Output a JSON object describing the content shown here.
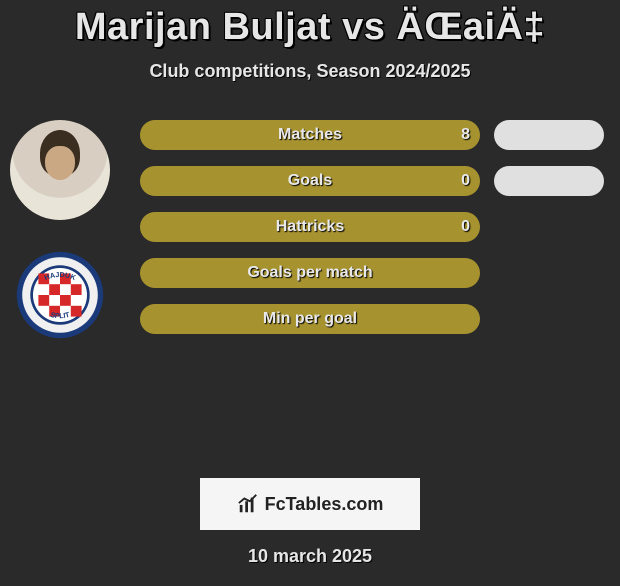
{
  "title": "Marijan Buljat vs ÄŒaiÄ‡",
  "subtitle": "Club competitions, Season 2024/2025",
  "date": "10 march 2025",
  "brand": "FcTables.com",
  "colors": {
    "bar_fill": "#a6922f",
    "pill_fill": "#e0e0e0",
    "background": "#2a2a2a",
    "text": "#e6e6e6"
  },
  "metrics": [
    {
      "label": "Matches",
      "left_value": "8",
      "show_left_value": true,
      "show_right_pill": true
    },
    {
      "label": "Goals",
      "left_value": "0",
      "show_left_value": true,
      "show_right_pill": true
    },
    {
      "label": "Hattricks",
      "left_value": "0",
      "show_left_value": true,
      "show_right_pill": false
    },
    {
      "label": "Goals per match",
      "left_value": "",
      "show_left_value": false,
      "show_right_pill": false
    },
    {
      "label": "Min per goal",
      "left_value": "",
      "show_left_value": false,
      "show_right_pill": false
    }
  ],
  "club_badge": {
    "name": "Hajduk Split",
    "ring_color": "#1a3a7a",
    "ring_inner": "#f0f0f0",
    "check_red": "#d62828",
    "check_white": "#ffffff",
    "text": "HAJDUK · SPLIT"
  }
}
